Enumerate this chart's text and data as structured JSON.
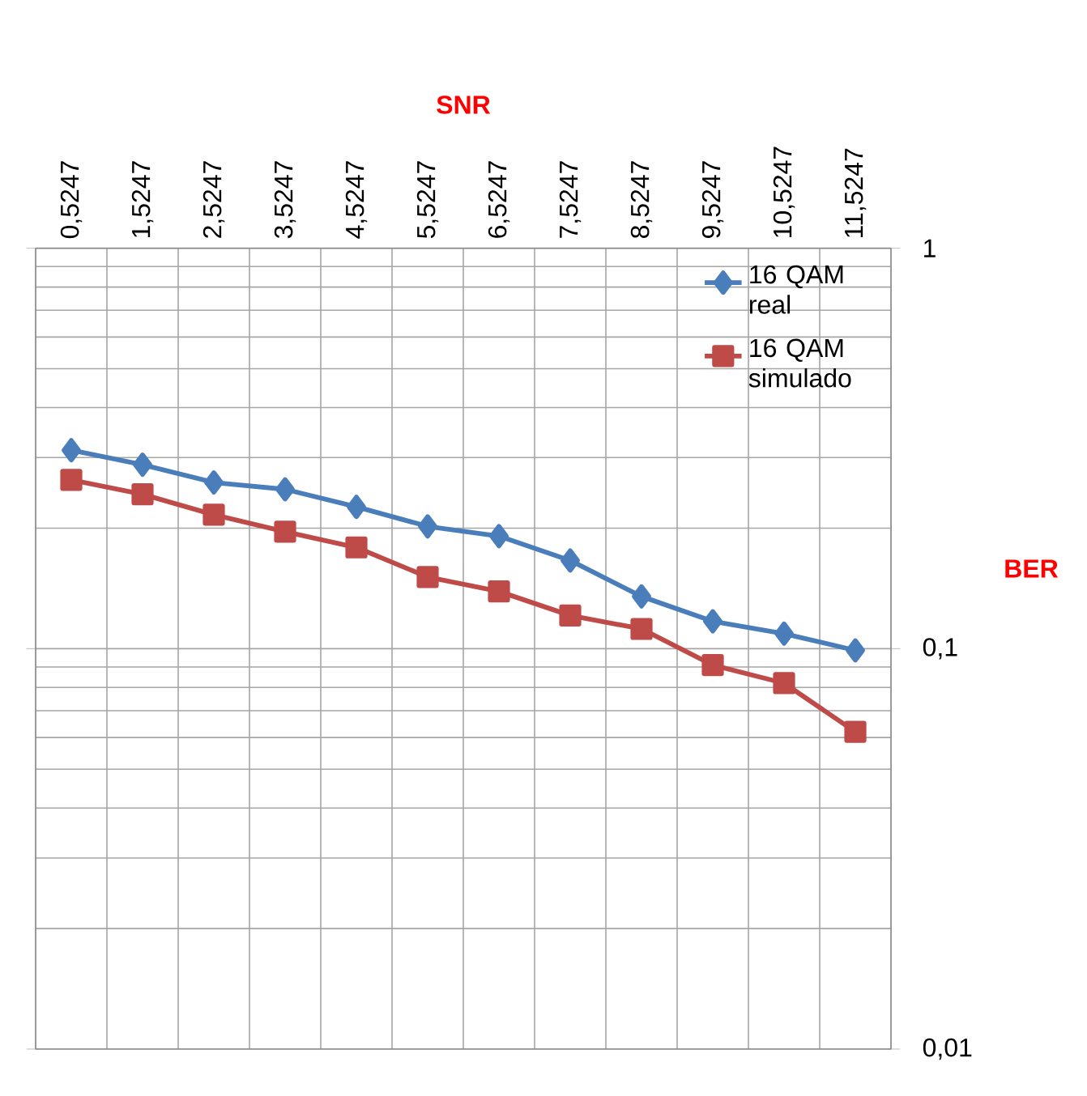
{
  "chart_data": {
    "type": "line",
    "xlabel": "SNR",
    "ylabel": "BER",
    "categories": [
      "0,5247",
      "1,5247",
      "2,5247",
      "3,5247",
      "4,5247",
      "5,5247",
      "6,5247",
      "7,5247",
      "8,5247",
      "9,5247",
      "10,5247",
      "11,5247"
    ],
    "series": [
      {
        "name": "16 QAM real",
        "color": "#4a7ebb",
        "marker": "diamond",
        "values": [
          0.313,
          0.288,
          0.26,
          0.25,
          0.226,
          0.202,
          0.191,
          0.166,
          0.135,
          0.117,
          0.109,
          0.099
        ]
      },
      {
        "name": "16 QAM simulado",
        "color": "#be4b48",
        "marker": "square",
        "values": [
          0.264,
          0.243,
          0.216,
          0.196,
          0.179,
          0.151,
          0.139,
          0.121,
          0.112,
          0.091,
          0.082,
          0.062
        ]
      }
    ],
    "log": "y",
    "ylim": [
      0.01,
      1
    ],
    "yticks": [
      {
        "value": 1,
        "label": "1"
      },
      {
        "value": 0.1,
        "label": "0,1"
      },
      {
        "value": 0.01,
        "label": "0,01"
      }
    ],
    "grid": true,
    "legend": "top right"
  }
}
